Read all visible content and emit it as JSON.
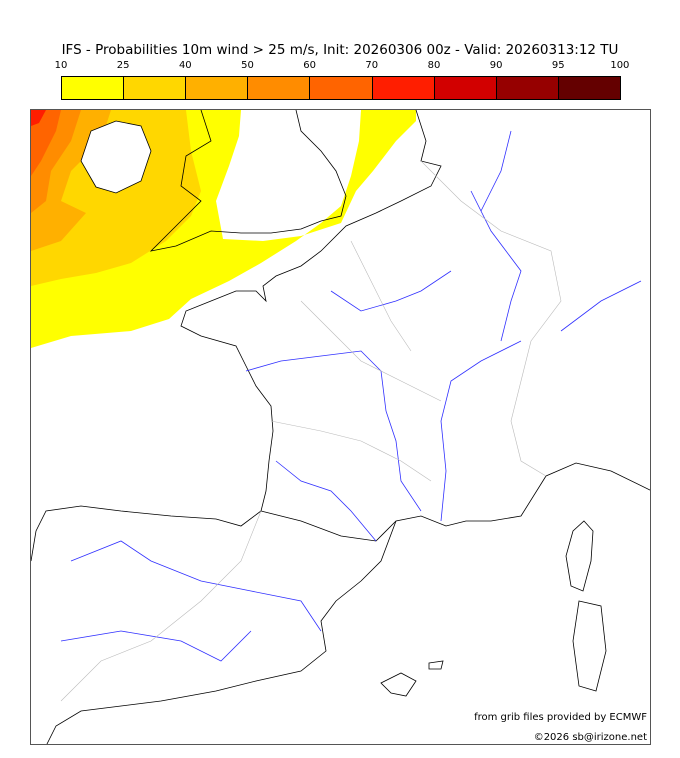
{
  "title": "IFS - Probabilities 10m wind > 25 m/s, Init: 20260306 00z - Valid: 20260313:12 TU",
  "colorbar": {
    "labels": [
      "10",
      "25",
      "40",
      "50",
      "60",
      "70",
      "80",
      "90",
      "95",
      "100"
    ],
    "colors": [
      "#ffff00",
      "#ffd700",
      "#ffb000",
      "#ff8c00",
      "#ff6400",
      "#ff1e00",
      "#d20000",
      "#960000",
      "#640000"
    ]
  },
  "credits": {
    "source": "from grib files provided by ECMWF",
    "copyright": "©2026 sb@irizone.net"
  }
}
